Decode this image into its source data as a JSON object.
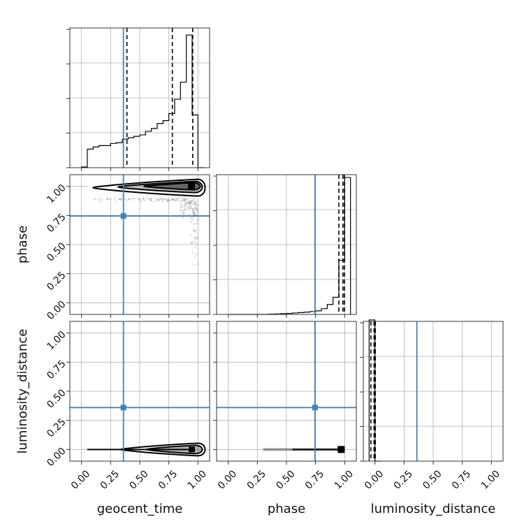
{
  "chart_data": {
    "type": "corner",
    "parameters": [
      "geocent_time",
      "phase",
      "luminosity_distance"
    ],
    "axis_ticks": [
      0.0,
      0.25,
      0.5,
      0.75,
      1.0
    ],
    "tick_labels": [
      "0.00",
      "0.25",
      "0.50",
      "0.75",
      "1.00"
    ],
    "axis_range": [
      -0.1,
      1.1
    ],
    "grid": true,
    "colors": {
      "truth": "#4682b4",
      "hist": "#000000",
      "quantile": "#000000",
      "scatter": "#9a9a9a"
    },
    "truths": {
      "geocent_time": 0.36,
      "phase": 0.745,
      "luminosity_distance": 0.36
    },
    "histograms": {
      "geocent_time": {
        "bin_edges": [
          0.0,
          0.05,
          0.1,
          0.15,
          0.2,
          0.25,
          0.3,
          0.35,
          0.4,
          0.45,
          0.5,
          0.55,
          0.6,
          0.65,
          0.7,
          0.75,
          0.8,
          0.85,
          0.9,
          0.95,
          1.0,
          1.05
        ],
        "counts": [
          0.005,
          0.13,
          0.145,
          0.155,
          0.155,
          0.17,
          0.175,
          0.2,
          0.21,
          0.22,
          0.23,
          0.255,
          0.275,
          0.31,
          0.33,
          0.38,
          0.48,
          0.6,
          0.93,
          0.37,
          0.0
        ],
        "quantiles": [
          0.39,
          0.78,
          0.955
        ]
      },
      "phase": {
        "bin_edges": [
          0.0,
          0.05,
          0.1,
          0.15,
          0.2,
          0.25,
          0.3,
          0.35,
          0.4,
          0.45,
          0.5,
          0.55,
          0.6,
          0.65,
          0.7,
          0.75,
          0.8,
          0.85,
          0.9,
          0.95,
          1.0,
          1.05
        ],
        "counts": [
          0.0,
          0.0,
          0.0,
          0.0,
          0.0,
          0.0,
          0.0,
          0.002,
          0.003,
          0.005,
          0.007,
          0.01,
          0.013,
          0.016,
          0.02,
          0.025,
          0.04,
          0.07,
          0.12,
          0.38,
          0.96
        ],
        "quantiles": [
          0.95,
          0.985,
          0.998
        ]
      },
      "luminosity_distance": {
        "bin_edges": [
          -0.05,
          0.0,
          0.05
        ],
        "counts": [
          0.99,
          0.0
        ],
        "quantiles": [
          -0.035,
          -0.008,
          0.003
        ]
      }
    },
    "pairs": [
      {
        "x": "geocent_time",
        "y": "phase",
        "density_mode": [
          0.95,
          1.0
        ]
      },
      {
        "x": "geocent_time",
        "y": "luminosity_distance",
        "density_mode": [
          0.95,
          0.0
        ]
      },
      {
        "x": "phase",
        "y": "luminosity_distance",
        "density_mode": [
          1.0,
          0.0
        ]
      }
    ]
  }
}
